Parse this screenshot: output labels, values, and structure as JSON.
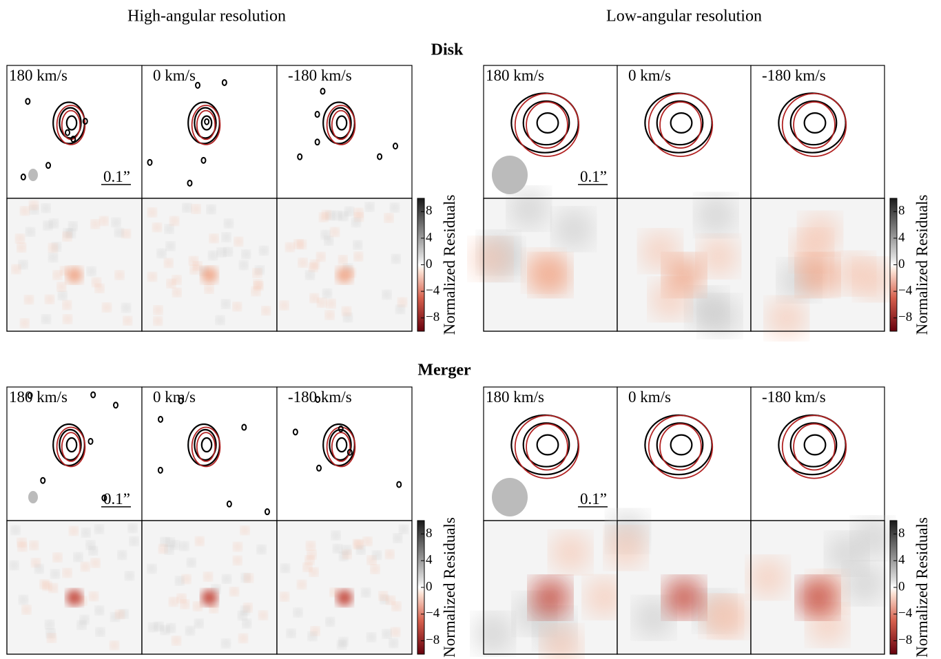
{
  "columns": [
    "High-angular resolution",
    "Low-angular resolution"
  ],
  "rows": [
    {
      "title": "Disk"
    },
    {
      "title": "Merger"
    }
  ],
  "velocities": [
    "180 km/s",
    "0 km/s",
    "-180 km/s"
  ],
  "scale_bar": "0.1”",
  "colorbar": {
    "label": "Normalized Residuals",
    "lim": [
      -10,
      10
    ],
    "ticks": [
      8,
      4,
      0,
      {
        "value": -4,
        "label": "−4"
      },
      {
        "value": -8,
        "label": "−8"
      }
    ]
  }
}
